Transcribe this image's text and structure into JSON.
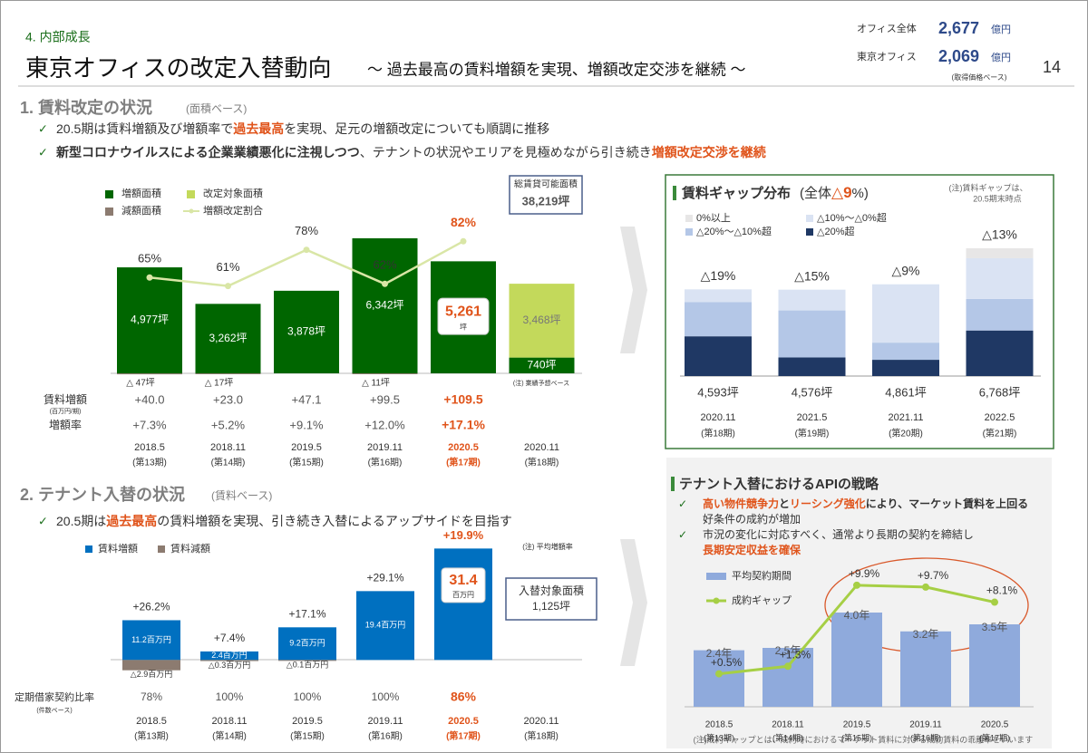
{
  "header": {
    "section": "4. 内部成長",
    "title": "東京オフィスの改定入替動向",
    "subtitle": "～ 過去最高の賃料増額を実現、増額改定交渉を継続 ～",
    "stats": [
      {
        "label": "オフィス全体",
        "value": "2,677",
        "unit": "億円"
      },
      {
        "label": "東京オフィス",
        "value": "2,069",
        "unit": "億円"
      }
    ],
    "stats_note": "(取得価格ベース)",
    "page": "14"
  },
  "section1": {
    "heading": "1. 賃料改定の状況",
    "heading_note": "(面積ベース)",
    "bullets": [
      [
        "20.5期は賃料増額及び増額率で",
        "過去最高",
        "を実現、足元の増額改定についても順調に推移"
      ],
      [
        "新型コロナウイルスによる企業業績悪化に注視しつつ",
        "、テナントの状況やエリアを見極めながら引き続き",
        "増額改定交渉を継続"
      ]
    ]
  },
  "section2": {
    "heading": "2. テナント入替の状況",
    "heading_note": "(賃料ベース)",
    "bullets": [
      [
        "20.5期は",
        "過去最高",
        "の賃料増額を実現、引き続き入替によるアップサイドを目指す"
      ]
    ]
  },
  "api": {
    "title": "テナント入替におけるAPIの戦略",
    "bullets": [
      [
        "高い物件競争力",
        "と",
        "リーシング強化",
        "により、",
        "マーケット賃料を上回る",
        "好条件の成約が増加"
      ],
      [
        "市況の変化に対応すべく、通常より長期の契約を締結し",
        "長期安定収益を確保"
      ]
    ],
    "note": "(注)成約ギャップとは、成約時におけるマーケット賃料に対する成約賃料の乖離率をいいます"
  },
  "chart_data": [
    {
      "type": "combo",
      "categories": [
        "2018.5",
        "2018.11",
        "2019.5",
        "2019.11",
        "2020.5",
        "2020.11"
      ],
      "periods": [
        "(第13期)",
        "(第14期)",
        "(第15期)",
        "(第16期)",
        "(第17期)",
        "(第18期)"
      ],
      "series": [
        {
          "name": "増額面積",
          "kind": "bar",
          "color": "#006600",
          "values": [
            4977,
            3262,
            3878,
            6342,
            5261,
            740
          ],
          "value_labels": [
            "4,977坪",
            "3,262坪",
            "3,878坪",
            "6,342坪",
            "5,261",
            "740坪"
          ]
        },
        {
          "name": "改定対象面積",
          "kind": "bar",
          "color": "#c3d95b",
          "values": [
            null,
            null,
            null,
            null,
            null,
            3468
          ],
          "value_labels": [
            null,
            null,
            null,
            null,
            null,
            "3,468坪"
          ]
        },
        {
          "name": "減額面積",
          "kind": "bar",
          "color": "#8c7b70",
          "values": [
            -47,
            -17,
            null,
            -11,
            null,
            null
          ],
          "value_labels": [
            "△ 47坪",
            "△ 17坪",
            null,
            "△ 11坪",
            null,
            null
          ]
        },
        {
          "name": "増額改定割合",
          "kind": "line",
          "axis": "y2",
          "color": "#d9e6a6",
          "values": [
            65,
            61,
            78,
            62,
            82,
            null
          ],
          "value_labels": [
            "65%",
            "61%",
            "78%",
            "62%",
            "82%",
            null
          ]
        }
      ],
      "ylim": [
        0,
        8000
      ],
      "y2lim": [
        20,
        100
      ],
      "highlight_index": 4,
      "highlight_color": "#e0541b",
      "highlight_unit": "坪",
      "rows": [
        {
          "label": "賃料増額",
          "sublabel": "(百万円/期)",
          "cells": [
            "+40.0",
            "+23.0",
            "+47.1",
            "+99.5",
            "+109.5",
            null
          ]
        },
        {
          "label": "増額率",
          "cells": [
            "+7.3%",
            "+5.2%",
            "+9.1%",
            "+12.0%",
            "+17.1%",
            null
          ]
        }
      ],
      "box": {
        "title": "総賃貸可能面積",
        "value": "38,219坪"
      },
      "note": "(注) 業績予想ベース"
    },
    {
      "type": "stacked_bar",
      "title": "賃料ギャップ分布",
      "overall": [
        "(全体",
        "△9",
        "%)"
      ],
      "note": [
        "(注)賃料ギャップは、",
        "20.5期末時点"
      ],
      "categories": [
        "2020.11",
        "2021.5",
        "2021.11",
        "2022.5"
      ],
      "periods": [
        "(第18期)",
        "(第19期)",
        "(第20期)",
        "(第21期)"
      ],
      "series": [
        {
          "name": "0%以上",
          "color": "#e7e6e6",
          "values": [
            0,
            0,
            0,
            526
          ]
        },
        {
          "name": "△10%～△0%超",
          "color": "#dae3f3",
          "values": [
            670,
            1100,
            3091,
            2153
          ]
        },
        {
          "name": "△20%～△10%超",
          "color": "#b4c7e7",
          "values": [
            1818,
            2488,
            909,
            1675
          ]
        },
        {
          "name": "△20%超",
          "color": "#1f3864",
          "values": [
            2105,
            988,
            861,
            2414
          ]
        }
      ],
      "gap_labels": [
        "△19%",
        "△15%",
        "△9%",
        "△13%"
      ],
      "total_labels": [
        "4,593坪",
        "4,576坪",
        "4,861坪",
        "6,768坪"
      ],
      "ylim": [
        0,
        7200
      ]
    },
    {
      "type": "bar",
      "categories": [
        "2018.5",
        "2018.11",
        "2019.5",
        "2019.11",
        "2020.5",
        "2020.11"
      ],
      "periods": [
        "(第13期)",
        "(第14期)",
        "(第15期)",
        "(第16期)",
        "(第17期)",
        "(第18期)"
      ],
      "series": [
        {
          "name": "賃料増額",
          "color": "#0070c0",
          "values": [
            11.2,
            2.4,
            9.2,
            19.4,
            31.4,
            null
          ],
          "value_labels": [
            "11.2百万円",
            "2.4百万円",
            "9.2百万円",
            "19.4百万円",
            "31.4",
            null
          ]
        },
        {
          "name": "賃料減額",
          "color": "#8c7b70",
          "values": [
            -2.9,
            -0.3,
            -0.1,
            null,
            null,
            null
          ],
          "value_labels": [
            "△2.9百万円",
            "△0.3百万円",
            "△0.1百万円",
            null,
            null,
            null
          ]
        }
      ],
      "ylim": [
        -4,
        32
      ],
      "highlight_index": 4,
      "highlight_color": "#e0541b",
      "highlight_unit": "百万円",
      "rate_labels": [
        "+26.2%",
        "+7.4%",
        "+17.1%",
        "+29.1%",
        "+19.9%",
        null
      ],
      "rates_note": "(注) 平均増額率",
      "row": {
        "label": "定期借家契約比率",
        "sublabel": "(件数ベース)",
        "cells": [
          "78%",
          "100%",
          "100%",
          "100%",
          "86%",
          null
        ]
      },
      "box": {
        "title": "入替対象面積",
        "value": "1,125坪"
      }
    },
    {
      "type": "combo",
      "categories": [
        "2018.5",
        "2018.11",
        "2019.5",
        "2019.11",
        "2020.5"
      ],
      "periods": [
        "(第13期)",
        "(第14期)",
        "(第15期)",
        "(第16期)",
        "(第17期)"
      ],
      "series": [
        {
          "name": "平均契約期間",
          "kind": "bar",
          "color": "#8faadc",
          "values": [
            2.4,
            2.5,
            4.0,
            3.2,
            3.5
          ],
          "value_labels": [
            "2.4年",
            "2.5年",
            "4.0年",
            "3.2年",
            "3.5年"
          ]
        },
        {
          "name": "成約ギャップ",
          "kind": "line",
          "axis": "y2",
          "color": "#a6cf45",
          "values": [
            0.5,
            1.3,
            9.9,
            9.7,
            8.1
          ],
          "value_labels": [
            "+0.5%",
            "+1.3%",
            "+9.9%",
            "+9.7%",
            "+8.1%"
          ]
        }
      ],
      "ylim": [
        0,
        6
      ],
      "y2lim": [
        -3,
        12
      ]
    }
  ]
}
